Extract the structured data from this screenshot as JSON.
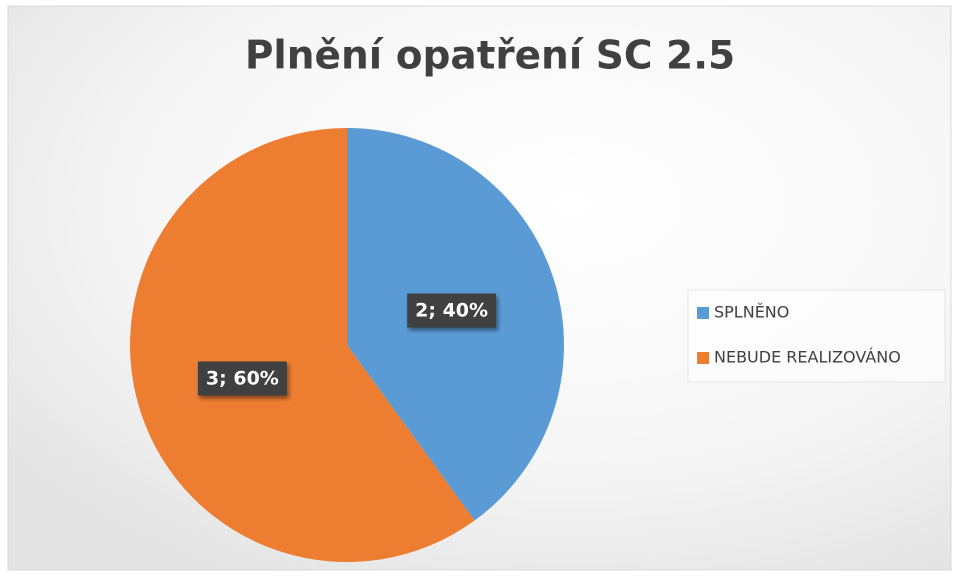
{
  "chart_data": {
    "type": "pie",
    "title": "Plnění opatření SC 2.5",
    "categories": [
      "SPLNĚNO",
      "NEBUDE REALIZOVÁNO"
    ],
    "values": [
      2,
      3
    ],
    "value_labels": [
      "2; 40%",
      "3; 60%"
    ],
    "colors": [
      "#5b9bd5",
      "#ed7d31"
    ],
    "legend": "right"
  }
}
